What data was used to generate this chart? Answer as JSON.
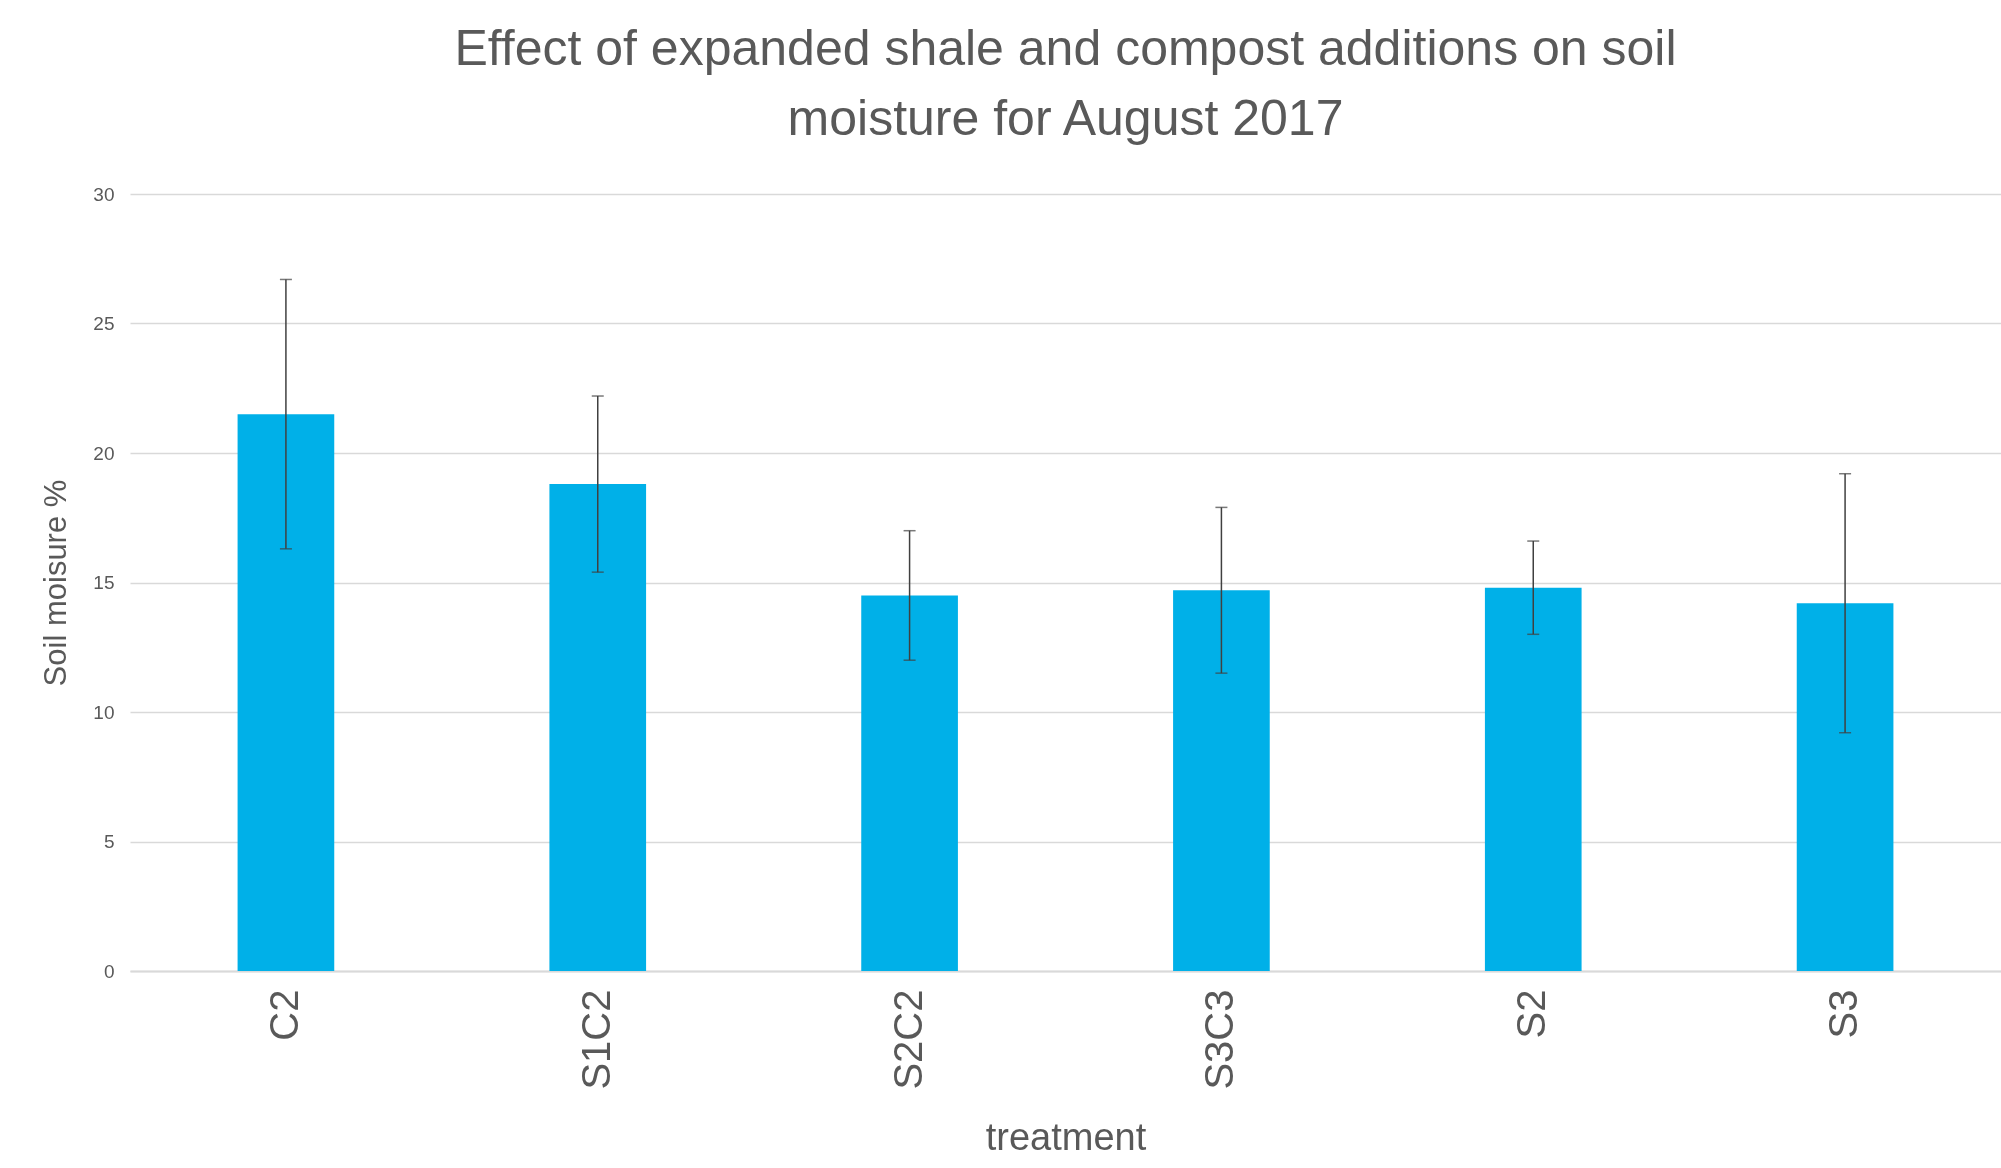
{
  "chart_data": {
    "type": "bar",
    "title": "Effect of expanded shale and compost additions on soil moisture  for August 2017",
    "xlabel": "treatment",
    "ylabel": "Soil moisure %",
    "categories": [
      "C2",
      "S1C2",
      "S2C2",
      "S3C3",
      "S2",
      "S3"
    ],
    "values": [
      21.5,
      18.8,
      14.5,
      14.7,
      14.8,
      14.2
    ],
    "errors": [
      5.2,
      3.4,
      2.5,
      3.2,
      1.8,
      5.0
    ],
    "color": "#00b0e8",
    "ylim": [
      0,
      30
    ],
    "yticks": [
      0,
      5,
      10,
      15,
      20,
      25,
      30
    ],
    "grid": "y"
  }
}
